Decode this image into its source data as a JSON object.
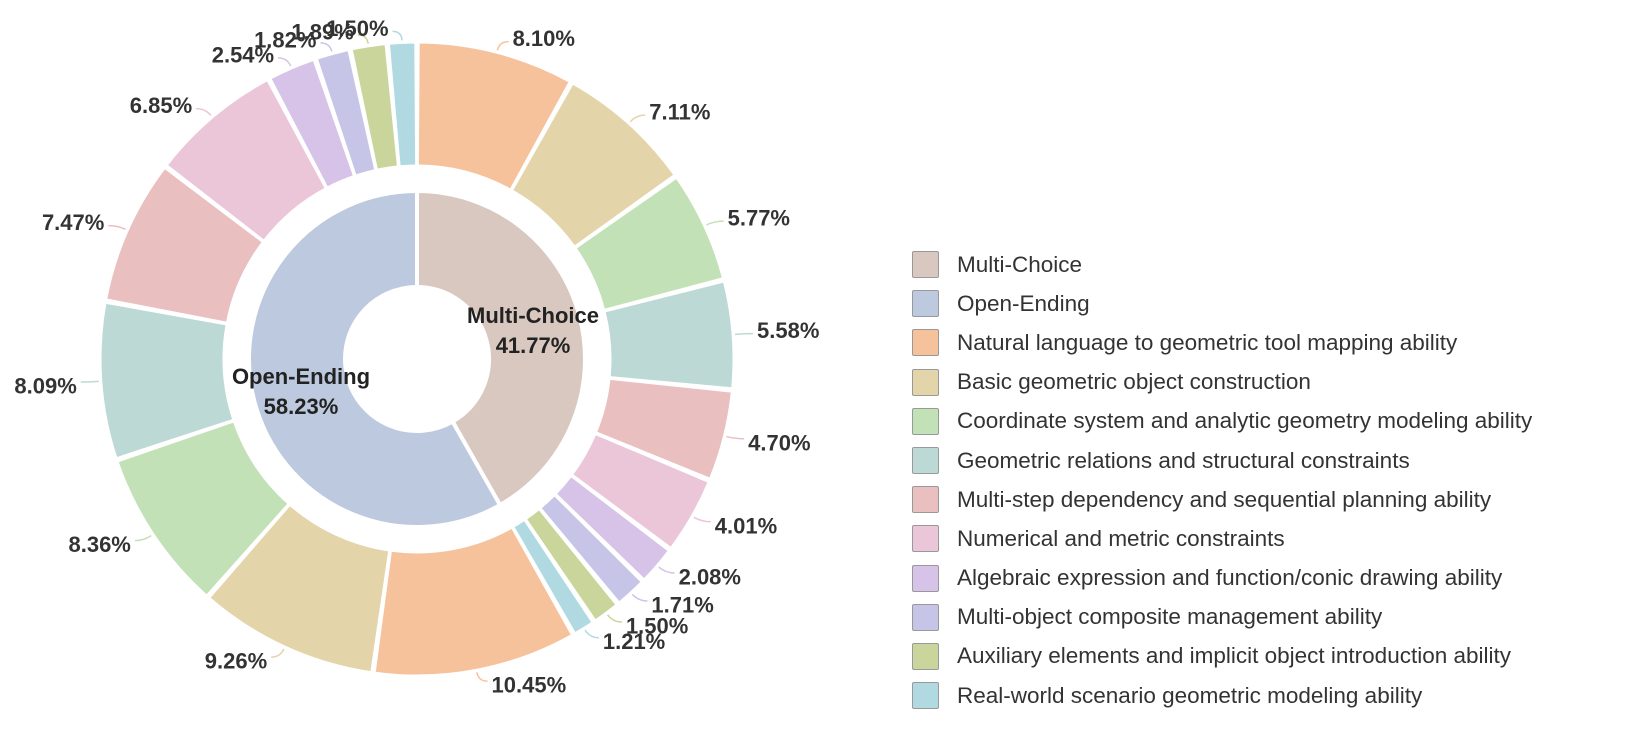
{
  "chart_data": {
    "type": "pie",
    "inner": [
      {
        "name": "Multi-Choice",
        "value": 41.77,
        "color": "#d9c8bf"
      },
      {
        "name": "Open-Ending",
        "value": 58.23,
        "color": "#bdc9de"
      }
    ],
    "outer": [
      {
        "group": "Multi-Choice",
        "category": "Natural language to geometric tool mapping ability",
        "value": 8.1
      },
      {
        "group": "Multi-Choice",
        "category": "Basic geometric object construction",
        "value": 7.11
      },
      {
        "group": "Multi-Choice",
        "category": "Coordinate system and analytic geometry modeling ability",
        "value": 5.77
      },
      {
        "group": "Multi-Choice",
        "category": "Geometric relations and structural constraints",
        "value": 5.58
      },
      {
        "group": "Multi-Choice",
        "category": "Multi-step dependency and sequential planning ability",
        "value": 4.7
      },
      {
        "group": "Multi-Choice",
        "category": "Numerical and metric constraints",
        "value": 4.01
      },
      {
        "group": "Multi-Choice",
        "category": "Algebraic expression and function/conic drawing ability",
        "value": 2.08
      },
      {
        "group": "Multi-Choice",
        "category": "Multi-object composite management ability",
        "value": 1.71
      },
      {
        "group": "Multi-Choice",
        "category": "Auxiliary elements and implicit object introduction ability",
        "value": 1.5
      },
      {
        "group": "Multi-Choice",
        "category": "Real-world scenario geometric modeling ability",
        "value": 1.21
      },
      {
        "group": "Open-Ending",
        "category": "Natural language to geometric tool mapping ability",
        "value": 10.45
      },
      {
        "group": "Open-Ending",
        "category": "Basic geometric object construction",
        "value": 9.26
      },
      {
        "group": "Open-Ending",
        "category": "Coordinate system and analytic geometry modeling ability",
        "value": 8.36
      },
      {
        "group": "Open-Ending",
        "category": "Geometric relations and structural constraints",
        "value": 8.09
      },
      {
        "group": "Open-Ending",
        "category": "Multi-step dependency and sequential planning ability",
        "value": 7.47
      },
      {
        "group": "Open-Ending",
        "category": "Numerical and metric constraints",
        "value": 6.85
      },
      {
        "group": "Open-Ending",
        "category": "Algebraic expression and function/conic drawing ability",
        "value": 2.54
      },
      {
        "group": "Open-Ending",
        "category": "Multi-object composite management ability",
        "value": 1.82
      },
      {
        "group": "Open-Ending",
        "category": "Auxiliary elements and implicit object introduction ability",
        "value": 1.89
      },
      {
        "group": "Open-Ending",
        "category": "Real-world scenario geometric modeling ability",
        "value": 1.5
      }
    ],
    "category_colors": {
      "Natural language to geometric tool mapping ability": "#f6c29b",
      "Basic geometric object construction": "#e4d4aa",
      "Coordinate system and analytic geometry modeling ability": "#c3e1b7",
      "Geometric relations and structural constraints": "#bdd9d5",
      "Multi-step dependency and sequential planning ability": "#eabfc0",
      "Numerical and metric constraints": "#ebc5d8",
      "Algebraic expression and function/conic drawing ability": "#d7c3e8",
      "Multi-object composite management ability": "#c6c5e8",
      "Auxiliary elements and implicit object introduction ability": "#c9d59b",
      "Real-world scenario geometric modeling ability": "#b0d9e2"
    },
    "legend": {
      "placement": "right",
      "entries": [
        {
          "label": "Multi-Choice",
          "color": "#d9c8bf"
        },
        {
          "label": "Open-Ending",
          "color": "#bdc9de"
        },
        {
          "label": "Natural language to geometric tool mapping ability",
          "color": "#f6c29b"
        },
        {
          "label": "Basic geometric object construction",
          "color": "#e4d4aa"
        },
        {
          "label": "Coordinate system and analytic geometry modeling ability",
          "color": "#c3e1b7"
        },
        {
          "label": "Geometric relations and structural constraints",
          "color": "#bdd9d5"
        },
        {
          "label": "Multi-step dependency and sequential planning ability",
          "color": "#eabfc0"
        },
        {
          "label": "Numerical and metric constraints",
          "color": "#ebc5d8"
        },
        {
          "label": "Algebraic expression and function/conic drawing ability",
          "color": "#d7c3e8"
        },
        {
          "label": "Multi-object composite management ability",
          "color": "#c6c5e8"
        },
        {
          "label": "Auxiliary elements and implicit object introduction ability",
          "color": "#c9d59b"
        },
        {
          "label": "Real-world scenario geometric modeling ability",
          "color": "#b0d9e2"
        }
      ]
    }
  }
}
